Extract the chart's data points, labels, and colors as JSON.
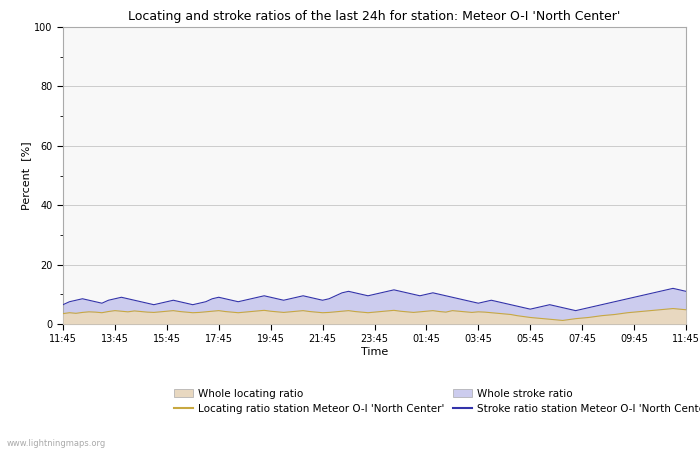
{
  "title": "Locating and stroke ratios of the last 24h for station: Meteor O-I 'North Center'",
  "xlabel": "Time",
  "ylabel": "Percent  [%]",
  "ylim": [
    0,
    100
  ],
  "yticks": [
    0,
    20,
    40,
    60,
    80,
    100
  ],
  "yticks_minor": [
    10,
    30,
    50,
    70,
    90
  ],
  "x_labels": [
    "11:45",
    "13:45",
    "15:45",
    "17:45",
    "19:45",
    "21:45",
    "23:45",
    "01:45",
    "03:45",
    "05:45",
    "07:45",
    "09:45",
    "11:45"
  ],
  "watermark": "www.lightningmaps.org",
  "grid_color": "#cccccc",
  "whole_locating_color_fill": "#e8d8c0",
  "whole_stroke_color_fill": "#ccccee",
  "station_locating_color": "#c8a840",
  "station_stroke_color": "#3333aa",
  "n_points": 97,
  "whole_locating": [
    3.5,
    3.8,
    3.6,
    3.9,
    4.1,
    4.0,
    3.8,
    4.2,
    4.5,
    4.3,
    4.1,
    4.4,
    4.2,
    4.0,
    3.9,
    4.1,
    4.3,
    4.5,
    4.2,
    4.0,
    3.8,
    3.9,
    4.1,
    4.3,
    4.5,
    4.2,
    4.0,
    3.8,
    4.0,
    4.2,
    4.4,
    4.6,
    4.3,
    4.1,
    3.9,
    4.1,
    4.3,
    4.5,
    4.2,
    4.0,
    3.8,
    3.9,
    4.1,
    4.3,
    4.5,
    4.2,
    4.0,
    3.8,
    4.0,
    4.2,
    4.4,
    4.6,
    4.3,
    4.1,
    3.9,
    4.1,
    4.3,
    4.5,
    4.2,
    4.0,
    4.5,
    4.3,
    4.1,
    3.9,
    4.1,
    4.0,
    3.8,
    3.6,
    3.4,
    3.2,
    2.8,
    2.5,
    2.2,
    2.0,
    1.8,
    1.6,
    1.4,
    1.2,
    1.5,
    1.8,
    2.0,
    2.2,
    2.5,
    2.8,
    3.0,
    3.2,
    3.5,
    3.8,
    4.0,
    4.2,
    4.4,
    4.6,
    4.8,
    5.0,
    5.2,
    5.0,
    4.8
  ],
  "whole_stroke": [
    6.5,
    7.5,
    8.0,
    8.5,
    8.0,
    7.5,
    7.0,
    8.0,
    8.5,
    9.0,
    8.5,
    8.0,
    7.5,
    7.0,
    6.5,
    7.0,
    7.5,
    8.0,
    7.5,
    7.0,
    6.5,
    7.0,
    7.5,
    8.5,
    9.0,
    8.5,
    8.0,
    7.5,
    8.0,
    8.5,
    9.0,
    9.5,
    9.0,
    8.5,
    8.0,
    8.5,
    9.0,
    9.5,
    9.0,
    8.5,
    8.0,
    8.5,
    9.5,
    10.5,
    11.0,
    10.5,
    10.0,
    9.5,
    10.0,
    10.5,
    11.0,
    11.5,
    11.0,
    10.5,
    10.0,
    9.5,
    10.0,
    10.5,
    10.0,
    9.5,
    9.0,
    8.5,
    8.0,
    7.5,
    7.0,
    7.5,
    8.0,
    7.5,
    7.0,
    6.5,
    6.0,
    5.5,
    5.0,
    5.5,
    6.0,
    6.5,
    6.0,
    5.5,
    5.0,
    4.5,
    5.0,
    5.5,
    6.0,
    6.5,
    7.0,
    7.5,
    8.0,
    8.5,
    9.0,
    9.5,
    10.0,
    10.5,
    11.0,
    11.5,
    12.0,
    11.5,
    11.0
  ],
  "station_locating": [
    3.5,
    3.8,
    3.6,
    3.9,
    4.1,
    4.0,
    3.8,
    4.2,
    4.5,
    4.3,
    4.1,
    4.4,
    4.2,
    4.0,
    3.9,
    4.1,
    4.3,
    4.5,
    4.2,
    4.0,
    3.8,
    3.9,
    4.1,
    4.3,
    4.5,
    4.2,
    4.0,
    3.8,
    4.0,
    4.2,
    4.4,
    4.6,
    4.3,
    4.1,
    3.9,
    4.1,
    4.3,
    4.5,
    4.2,
    4.0,
    3.8,
    3.9,
    4.1,
    4.3,
    4.5,
    4.2,
    4.0,
    3.8,
    4.0,
    4.2,
    4.4,
    4.6,
    4.3,
    4.1,
    3.9,
    4.1,
    4.3,
    4.5,
    4.2,
    4.0,
    4.5,
    4.3,
    4.1,
    3.9,
    4.1,
    4.0,
    3.8,
    3.6,
    3.4,
    3.2,
    2.8,
    2.5,
    2.2,
    2.0,
    1.8,
    1.6,
    1.4,
    1.2,
    1.5,
    1.8,
    2.0,
    2.2,
    2.5,
    2.8,
    3.0,
    3.2,
    3.5,
    3.8,
    4.0,
    4.2,
    4.4,
    4.6,
    4.8,
    5.0,
    5.2,
    5.0,
    4.8
  ],
  "station_stroke": [
    6.5,
    7.5,
    8.0,
    8.5,
    8.0,
    7.5,
    7.0,
    8.0,
    8.5,
    9.0,
    8.5,
    8.0,
    7.5,
    7.0,
    6.5,
    7.0,
    7.5,
    8.0,
    7.5,
    7.0,
    6.5,
    7.0,
    7.5,
    8.5,
    9.0,
    8.5,
    8.0,
    7.5,
    8.0,
    8.5,
    9.0,
    9.5,
    9.0,
    8.5,
    8.0,
    8.5,
    9.0,
    9.5,
    9.0,
    8.5,
    8.0,
    8.5,
    9.5,
    10.5,
    11.0,
    10.5,
    10.0,
    9.5,
    10.0,
    10.5,
    11.0,
    11.5,
    11.0,
    10.5,
    10.0,
    9.5,
    10.0,
    10.5,
    10.0,
    9.5,
    9.0,
    8.5,
    8.0,
    7.5,
    7.0,
    7.5,
    8.0,
    7.5,
    7.0,
    6.5,
    6.0,
    5.5,
    5.0,
    5.5,
    6.0,
    6.5,
    6.0,
    5.5,
    5.0,
    4.5,
    5.0,
    5.5,
    6.0,
    6.5,
    7.0,
    7.5,
    8.0,
    8.5,
    9.0,
    9.5,
    10.0,
    10.5,
    11.0,
    11.5,
    12.0,
    11.5,
    11.0
  ]
}
